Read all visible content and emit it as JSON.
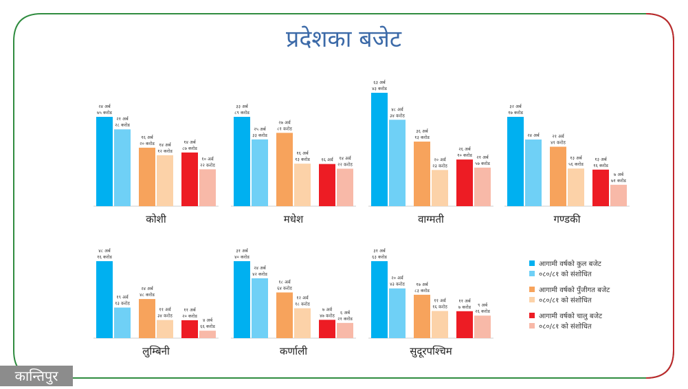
{
  "title": "प्रदेशका बजेट",
  "logo": "कान्तिपुर",
  "legend": {
    "entries": [
      {
        "name": "आगामी वर्षको कुल बजेट",
        "color": "#00b0f0"
      },
      {
        "name": "०८०/८१ को संशोधित",
        "color": "#6fd0f6"
      },
      {
        "name": "आगामी वर्षको पुँजीगत बजेट",
        "color": "#f7a35c"
      },
      {
        "name": "०८०/८१ को संशोधित",
        "color": "#fcd2a8"
      },
      {
        "name": "आगामी वर्षको चालु बजेट",
        "color": "#ed1c24"
      },
      {
        "name": "०८०/८१ को संशोधित",
        "color": "#f8b9a8"
      }
    ]
  },
  "chart_data": [
    {
      "type": "bar",
      "title": "कोशी",
      "values": [
        24.75,
        21.28,
        16.2,
        14.12,
        14.87,
        10.22
      ],
      "value_labels": [
        "२४ अर्ब ७५ करोड",
        "२१ अर्ब २८ करोड",
        "१६ अर्ब २० करोड",
        "१४ अर्ब १२ करोड",
        "१४ अर्ब ८७ करोड",
        "१० अर्ब २२ करोड"
      ]
    },
    {
      "type": "bar",
      "title": "मधेश",
      "values": [
        33.89,
        25.33,
        27.81,
        16.13,
        16,
        14.22
      ],
      "value_labels": [
        "३३ अर्ब ८९ करोड",
        "२५ अर्ब ३३ करोड",
        "२७ अर्ब ८१ करोड",
        "१६ अर्ब १३ करोड",
        "१६ अर्ब",
        "१४ अर्ब २२ करोड"
      ]
    },
    {
      "type": "bar",
      "title": "वाग्मती",
      "values": [
        63.43,
        48.34,
        36.13,
        20.23,
        26.1,
        21.57
      ],
      "value_labels": [
        "६३ अर्ब ४३ करोड",
        "४८ अर्ब ३४ करोड",
        "३६ अर्ब १३ करोड",
        "२० अर्ब २३ करोड",
        "२६ अर्ब १० करोड",
        "२१ अर्ब ५७ करोड"
      ]
    },
    {
      "type": "bar",
      "title": "गण्डकी",
      "values": [
        32.17,
        24,
        21.41,
        13.56,
        13.16,
        7.71
      ],
      "value_labels": [
        "३२ अर्ब १७ करोड",
        "२४ अर्ब",
        "२१ अर्ब ४१ करोड",
        "१३ अर्ब ५६ करोड",
        "१३ अर्ब १६ करोड",
        "७ अर्ब ७१ करोड"
      ]
    },
    {
      "type": "bar",
      "title": "लुम्बिनी",
      "values": [
        48.16,
        19.13,
        24.48,
        11.34,
        11.2,
        4.66
      ],
      "value_labels": [
        "४८ अर्ब १६ करोड",
        "१९ अर्ब १३ करोड",
        "२४ अर्ब ४८ करोड",
        "११ अर्ब ३४ करोड",
        "११ अर्ब २० करोड",
        "४ अर्ब ६६ करोड"
      ]
    },
    {
      "type": "bar",
      "title": "कर्णाली",
      "values": [
        31.4,
        24.42,
        18.64,
        12.18,
        7.47,
        6.21
      ],
      "value_labels": [
        "३१ अर्ब ४० करोड",
        "२४ अर्ब ४२ करोड",
        "१८ अर्ब ६४ करोड",
        "१२ अर्ब १८ करोड",
        "७ अर्ब ४७ करोड",
        "६ अर्ब २१ करोड"
      ]
    },
    {
      "type": "bar",
      "title": "सुदूरपश्चिम",
      "values": [
        31.63,
        20.43,
        17.83,
        11.16,
        11.07,
        9.26
      ],
      "value_labels": [
        "३१ अर्ब ६३ करोड",
        "२० अर्ब ४३ करोड",
        "१७ अर्ब ८३ करोड",
        "११ अर्ब १६ करोड",
        "११ अर्ब ७ करोड",
        "९ अर्ब २६ करोड"
      ]
    }
  ]
}
